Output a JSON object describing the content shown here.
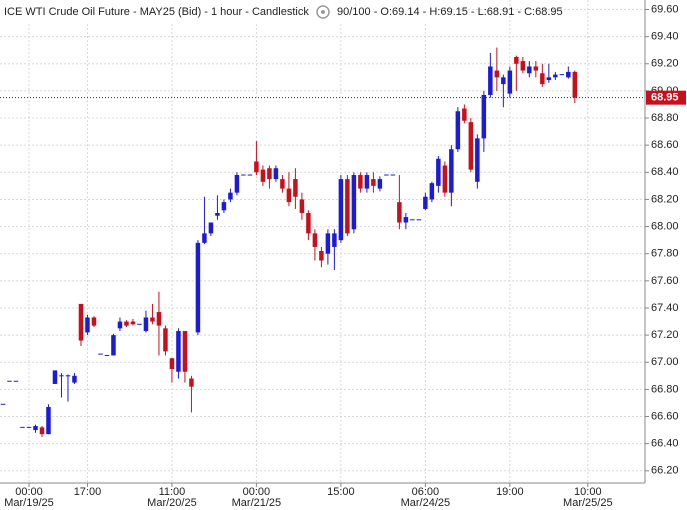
{
  "chart_data": {
    "type": "candlestick",
    "title": "ICE WTI Crude Oil Future - MAY25 (Bid) - 1 hour - Candlestick",
    "info": "90/100 - O:69.14 - H:69.15 - L:68.91 - C:68.95",
    "up_color": "#1c1cd6",
    "down_color": "#c8101c",
    "grid": true,
    "ylim": [
      66.11,
      69.67
    ],
    "yticks": [
      {
        "value": 66.2,
        "label": "66.20"
      },
      {
        "value": 66.4,
        "label": "66.40"
      },
      {
        "value": 66.6,
        "label": "66.60"
      },
      {
        "value": 66.8,
        "label": "66.80"
      },
      {
        "value": 67.0,
        "label": "67.00"
      },
      {
        "value": 67.2,
        "label": "67.20"
      },
      {
        "value": 67.4,
        "label": "67.40"
      },
      {
        "value": 67.6,
        "label": "67.60"
      },
      {
        "value": 67.8,
        "label": "67.80"
      },
      {
        "value": 68.0,
        "label": "68.00"
      },
      {
        "value": 68.2,
        "label": "68.20"
      },
      {
        "value": 68.4,
        "label": "68.40"
      },
      {
        "value": 68.6,
        "label": "68.60"
      },
      {
        "value": 68.8,
        "label": "68.80"
      },
      {
        "value": 69.0,
        "label": "69.00"
      },
      {
        "value": 69.2,
        "label": "69.20"
      },
      {
        "value": 69.4,
        "label": "69.40"
      },
      {
        "value": 69.6,
        "label": "69.60"
      }
    ],
    "xlim": [
      -0.46,
      98.8
    ],
    "xticks": [
      {
        "value": 4,
        "label": "00:00"
      },
      {
        "value": 13,
        "label": "17:00"
      },
      {
        "value": 26,
        "label": "11:00"
      },
      {
        "value": 39,
        "label": "00:00"
      },
      {
        "value": 52,
        "label": "15:00"
      },
      {
        "value": 65,
        "label": "06:00"
      },
      {
        "value": 78,
        "label": "19:00"
      },
      {
        "value": 90,
        "label": "10:00"
      }
    ],
    "x_dates": [
      {
        "value": 4,
        "label": "Mar/19/25"
      },
      {
        "value": 26,
        "label": "Mar/20/25"
      },
      {
        "value": 39,
        "label": "Mar/21/25"
      },
      {
        "value": 65,
        "label": "Mar/24/25"
      },
      {
        "value": 90,
        "label": "Mar/25/25"
      }
    ],
    "values": [
      {
        "open": 66.69,
        "high": 66.69,
        "low": 66.69,
        "close": 66.69
      },
      {
        "open": 66.86,
        "high": 66.86,
        "low": 66.86,
        "close": 66.86
      },
      {
        "open": 66.86,
        "high": 66.86,
        "low": 66.86,
        "close": 66.86
      },
      {
        "open": 66.52,
        "high": 66.52,
        "low": 66.52,
        "close": 66.52
      },
      {
        "open": 66.52,
        "high": 66.52,
        "low": 66.52,
        "close": 66.52
      },
      {
        "open": 66.5,
        "high": 66.54,
        "low": 66.48,
        "close": 66.53
      },
      {
        "open": 66.52,
        "high": 66.53,
        "low": 66.45,
        "close": 66.47
      },
      {
        "open": 66.47,
        "high": 66.69,
        "low": 66.47,
        "close": 66.67
      },
      {
        "open": 66.84,
        "high": 66.94,
        "low": 66.84,
        "close": 66.94
      },
      {
        "open": 66.9,
        "high": 66.92,
        "low": 66.74,
        "close": 66.9
      },
      {
        "open": 66.9,
        "high": 66.91,
        "low": 66.71,
        "close": 66.9
      },
      {
        "open": 66.85,
        "high": 66.92,
        "low": 66.84,
        "close": 66.9
      },
      {
        "open": 67.43,
        "high": 67.43,
        "low": 67.12,
        "close": 67.16
      },
      {
        "open": 67.22,
        "high": 67.35,
        "low": 67.2,
        "close": 67.33
      },
      {
        "open": 67.33,
        "high": 67.34,
        "low": 67.26,
        "close": 67.27
      },
      {
        "open": 67.06,
        "high": 67.06,
        "low": 67.06,
        "close": 67.06
      },
      {
        "open": 67.05,
        "high": 67.05,
        "low": 67.05,
        "close": 67.05
      },
      {
        "open": 67.05,
        "high": 67.21,
        "low": 67.05,
        "close": 67.2
      },
      {
        "open": 67.25,
        "high": 67.33,
        "low": 67.23,
        "close": 67.3
      },
      {
        "open": 67.3,
        "high": 67.31,
        "low": 67.26,
        "close": 67.27
      },
      {
        "open": 67.3,
        "high": 67.32,
        "low": 67.27,
        "close": 67.28
      },
      {
        "open": 67.28,
        "high": 67.28,
        "low": 67.28,
        "close": 67.28
      },
      {
        "open": 67.23,
        "high": 67.38,
        "low": 67.22,
        "close": 67.33
      },
      {
        "open": 67.33,
        "high": 67.43,
        "low": 67.28,
        "close": 67.3
      },
      {
        "open": 67.37,
        "high": 67.52,
        "low": 67.05,
        "close": 67.27
      },
      {
        "open": 67.25,
        "high": 67.27,
        "low": 67.05,
        "close": 67.08
      },
      {
        "open": 67.03,
        "high": 67.03,
        "low": 66.85,
        "close": 66.95
      },
      {
        "open": 66.93,
        "high": 67.25,
        "low": 66.88,
        "close": 67.23
      },
      {
        "open": 67.23,
        "high": 67.23,
        "low": 66.85,
        "close": 66.93
      },
      {
        "open": 66.88,
        "high": 66.9,
        "low": 66.63,
        "close": 66.82
      },
      {
        "open": 67.22,
        "high": 67.9,
        "low": 67.2,
        "close": 67.88
      },
      {
        "open": 67.88,
        "high": 68.22,
        "low": 67.87,
        "close": 67.95
      },
      {
        "open": 67.95,
        "high": 68.03,
        "low": 67.93,
        "close": 68.03
      },
      {
        "open": 68.08,
        "high": 68.23,
        "low": 68.05,
        "close": 68.1
      },
      {
        "open": 68.12,
        "high": 68.2,
        "low": 68.1,
        "close": 68.18
      },
      {
        "open": 68.2,
        "high": 68.28,
        "low": 68.18,
        "close": 68.25
      },
      {
        "open": 68.25,
        "high": 68.4,
        "low": 68.23,
        "close": 68.38
      },
      {
        "open": 68.38,
        "high": 68.38,
        "low": 68.38,
        "close": 68.38
      },
      {
        "open": 68.38,
        "high": 68.38,
        "low": 68.38,
        "close": 68.38
      },
      {
        "open": 68.48,
        "high": 68.63,
        "low": 68.38,
        "close": 68.4
      },
      {
        "open": 68.42,
        "high": 68.45,
        "low": 68.3,
        "close": 68.33
      },
      {
        "open": 68.43,
        "high": 68.45,
        "low": 68.28,
        "close": 68.35
      },
      {
        "open": 68.35,
        "high": 68.45,
        "low": 68.33,
        "close": 68.43
      },
      {
        "open": 68.35,
        "high": 68.38,
        "low": 68.25,
        "close": 68.28
      },
      {
        "open": 68.28,
        "high": 68.4,
        "low": 68.15,
        "close": 68.18
      },
      {
        "open": 68.35,
        "high": 68.43,
        "low": 68.13,
        "close": 68.22
      },
      {
        "open": 68.2,
        "high": 68.25,
        "low": 68.05,
        "close": 68.1
      },
      {
        "open": 68.1,
        "high": 68.12,
        "low": 67.9,
        "close": 67.95
      },
      {
        "open": 67.95,
        "high": 67.98,
        "low": 67.75,
        "close": 67.85
      },
      {
        "open": 67.82,
        "high": 67.85,
        "low": 67.7,
        "close": 67.75
      },
      {
        "open": 67.8,
        "high": 67.98,
        "low": 67.72,
        "close": 67.95
      },
      {
        "open": 67.85,
        "high": 67.98,
        "low": 67.68,
        "close": 67.95
      },
      {
        "open": 67.9,
        "high": 68.38,
        "low": 67.88,
        "close": 68.35
      },
      {
        "open": 68.35,
        "high": 68.38,
        "low": 67.93,
        "close": 67.95
      },
      {
        "open": 67.98,
        "high": 68.4,
        "low": 67.95,
        "close": 68.38
      },
      {
        "open": 68.38,
        "high": 68.4,
        "low": 68.25,
        "close": 68.28
      },
      {
        "open": 68.28,
        "high": 68.4,
        "low": 68.25,
        "close": 68.38
      },
      {
        "open": 68.35,
        "high": 68.4,
        "low": 68.25,
        "close": 68.3
      },
      {
        "open": 68.28,
        "high": 68.37,
        "low": 68.26,
        "close": 68.35
      },
      {
        "open": 68.38,
        "high": 68.38,
        "low": 68.38,
        "close": 68.38
      },
      {
        "open": 68.38,
        "high": 68.38,
        "low": 68.38,
        "close": 68.38
      },
      {
        "open": 68.18,
        "high": 68.38,
        "low": 67.98,
        "close": 68.03
      },
      {
        "open": 68.03,
        "high": 68.1,
        "low": 67.98,
        "close": 68.07
      },
      {
        "open": 68.05,
        "high": 68.05,
        "low": 68.05,
        "close": 68.05
      },
      {
        "open": 68.05,
        "high": 68.05,
        "low": 68.05,
        "close": 68.05
      },
      {
        "open": 68.13,
        "high": 68.25,
        "low": 68.12,
        "close": 68.22
      },
      {
        "open": 68.2,
        "high": 68.33,
        "low": 68.18,
        "close": 68.32
      },
      {
        "open": 68.3,
        "high": 68.52,
        "low": 68.25,
        "close": 68.5
      },
      {
        "open": 68.45,
        "high": 68.48,
        "low": 68.22,
        "close": 68.25
      },
      {
        "open": 68.25,
        "high": 68.6,
        "low": 68.15,
        "close": 68.57
      },
      {
        "open": 68.57,
        "high": 68.88,
        "low": 68.55,
        "close": 68.85
      },
      {
        "open": 68.87,
        "high": 68.9,
        "low": 68.76,
        "close": 68.78
      },
      {
        "open": 68.77,
        "high": 68.8,
        "low": 68.4,
        "close": 68.42
      },
      {
        "open": 68.33,
        "high": 68.68,
        "low": 68.28,
        "close": 68.65
      },
      {
        "open": 68.65,
        "high": 69.0,
        "low": 68.55,
        "close": 68.97
      },
      {
        "open": 68.97,
        "high": 69.28,
        "low": 68.95,
        "close": 69.18
      },
      {
        "open": 69.15,
        "high": 69.32,
        "low": 69.0,
        "close": 69.1
      },
      {
        "open": 69.05,
        "high": 69.12,
        "low": 68.88,
        "close": 69.1
      },
      {
        "open": 68.98,
        "high": 69.18,
        "low": 68.95,
        "close": 69.15
      },
      {
        "open": 69.25,
        "high": 69.26,
        "low": 69.0,
        "close": 69.2
      },
      {
        "open": 69.22,
        "high": 69.25,
        "low": 69.13,
        "close": 69.15
      },
      {
        "open": 69.13,
        "high": 69.22,
        "low": 69.1,
        "close": 69.18
      },
      {
        "open": 69.18,
        "high": 69.22,
        "low": 69.1,
        "close": 69.15
      },
      {
        "open": 69.13,
        "high": 69.2,
        "low": 69.03,
        "close": 69.05
      },
      {
        "open": 69.08,
        "high": 69.2,
        "low": 69.06,
        "close": 69.1
      },
      {
        "open": 69.1,
        "high": 69.14,
        "low": 69.08,
        "close": 69.12
      },
      {
        "open": 69.12,
        "high": 69.12,
        "low": 69.12,
        "close": 69.12
      },
      {
        "open": 69.1,
        "high": 69.18,
        "low": 69.09,
        "close": 69.14
      },
      {
        "open": 69.14,
        "high": 69.15,
        "low": 68.91,
        "close": 68.95
      }
    ]
  }
}
